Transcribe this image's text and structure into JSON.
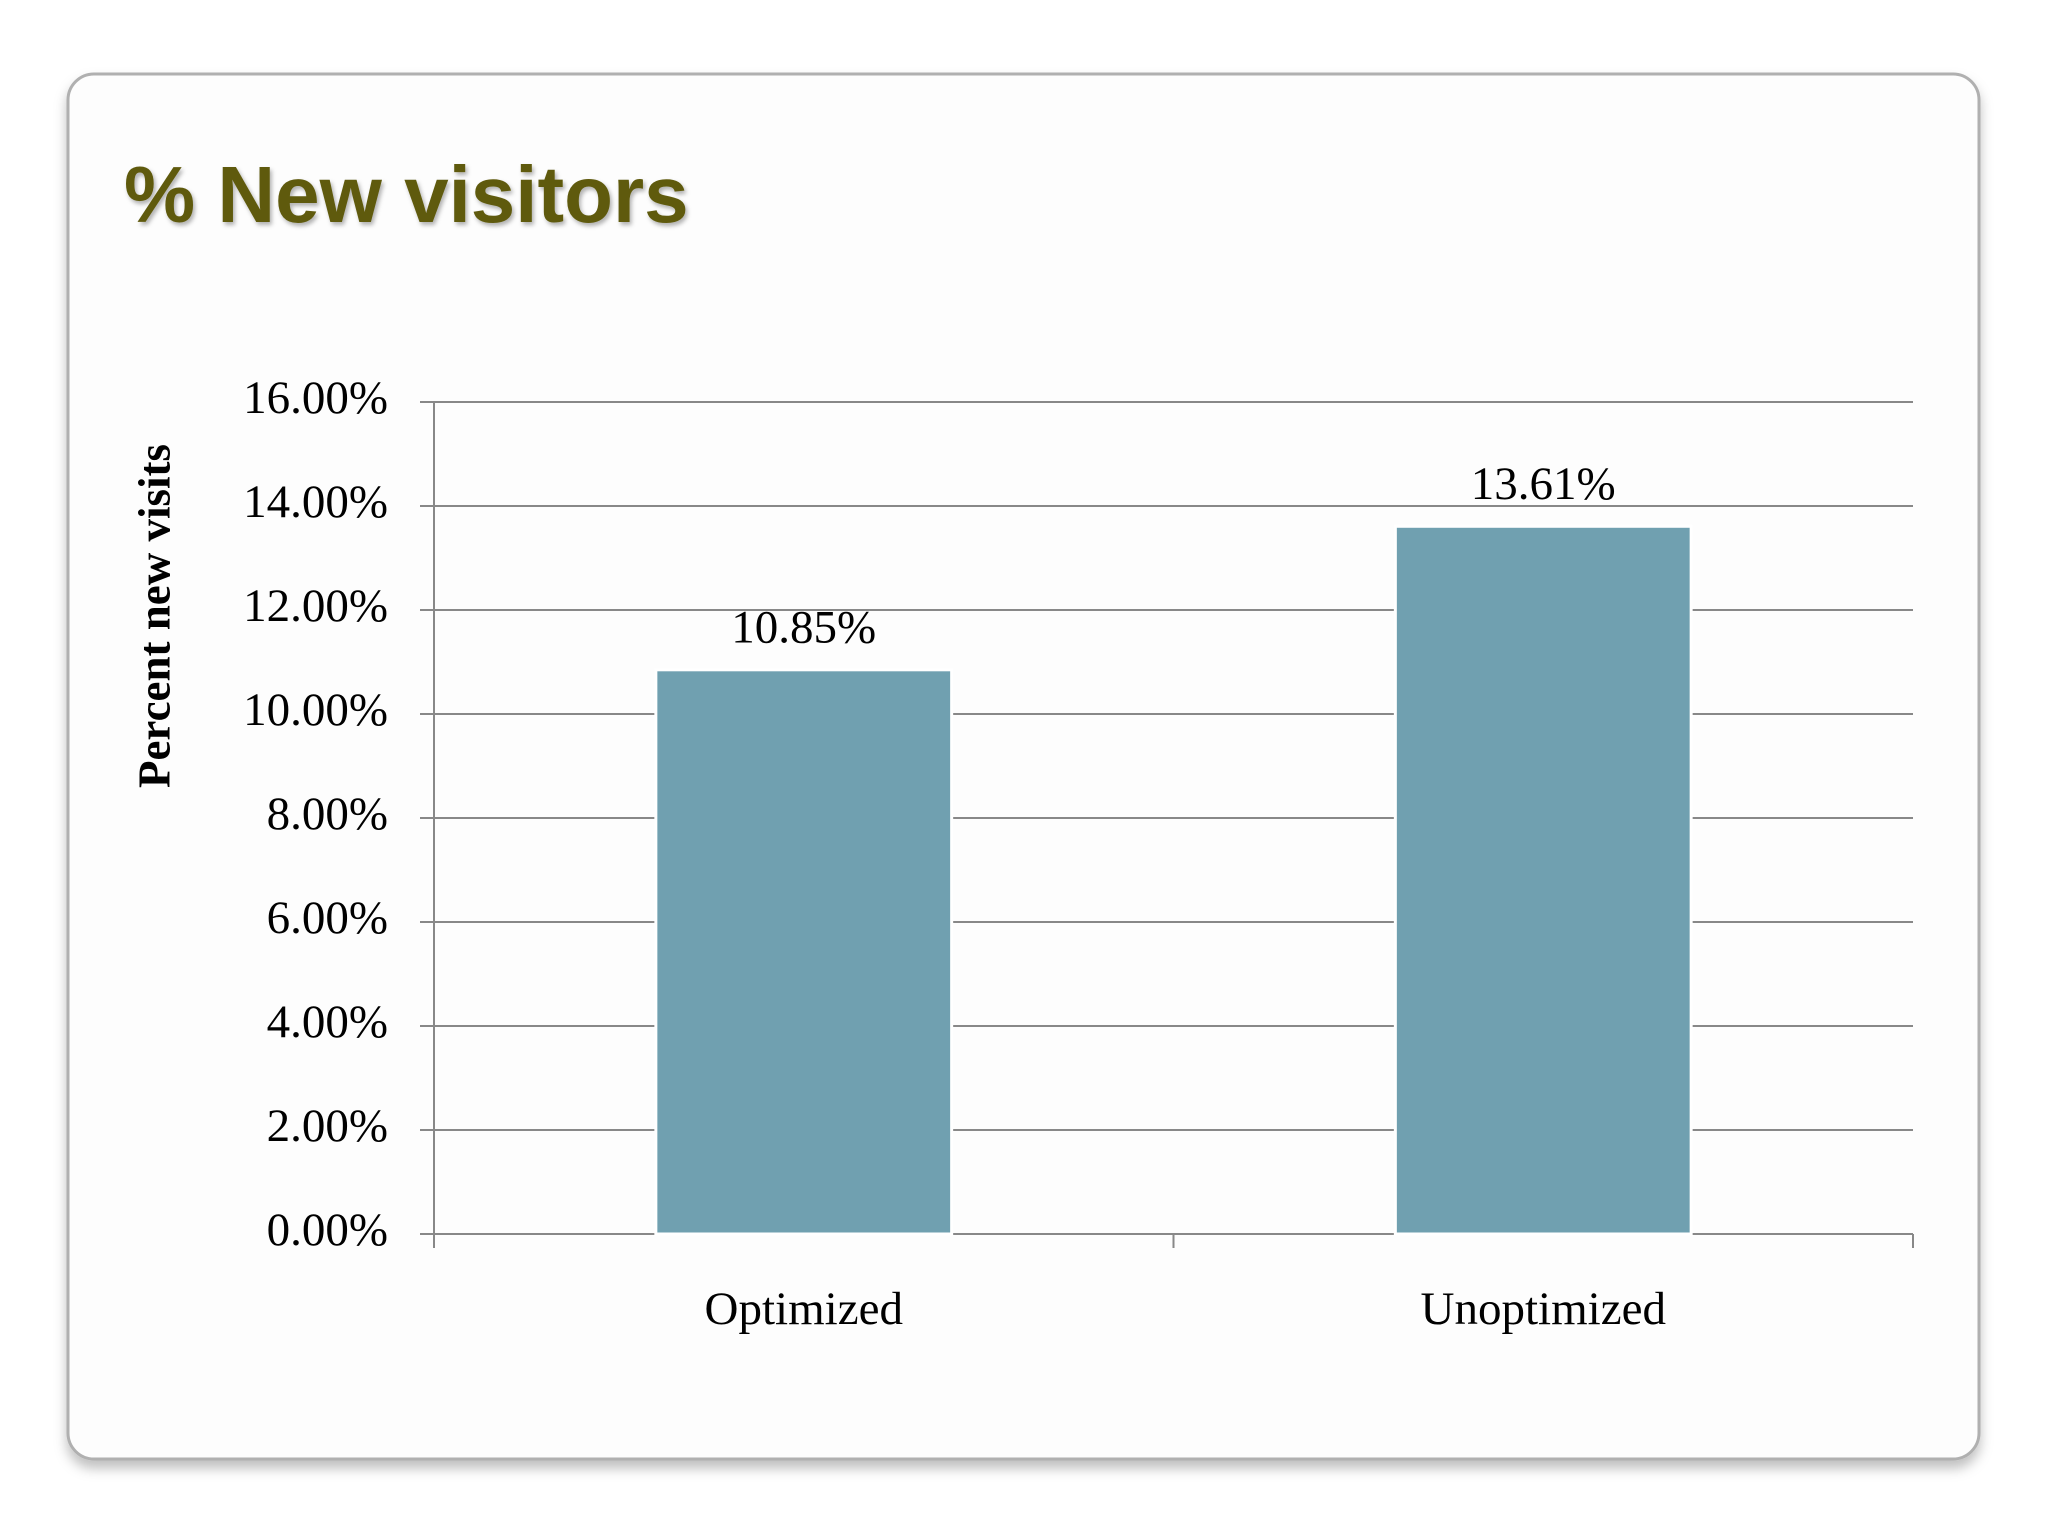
{
  "chart_data": {
    "type": "bar",
    "title": "% New visitors",
    "y_label": "Percent new visits",
    "categories": [
      "Optimized",
      "Unoptimized"
    ],
    "values": [
      10.85,
      13.61
    ],
    "value_labels": [
      "10.85%",
      "13.61%"
    ],
    "color": "#70a0b0",
    "ylim": [
      0,
      16
    ],
    "yticks": [
      {
        "value": 0,
        "label": "0.00%"
      },
      {
        "value": 2,
        "label": "2.00%"
      },
      {
        "value": 4,
        "label": "4.00%"
      },
      {
        "value": 6,
        "label": "6.00%"
      },
      {
        "value": 8,
        "label": "8.00%"
      },
      {
        "value": 10,
        "label": "10.00%"
      },
      {
        "value": 12,
        "label": "12.00%"
      },
      {
        "value": 14,
        "label": "14.00%"
      },
      {
        "value": 16,
        "label": "16.00%"
      }
    ],
    "grid": true
  }
}
